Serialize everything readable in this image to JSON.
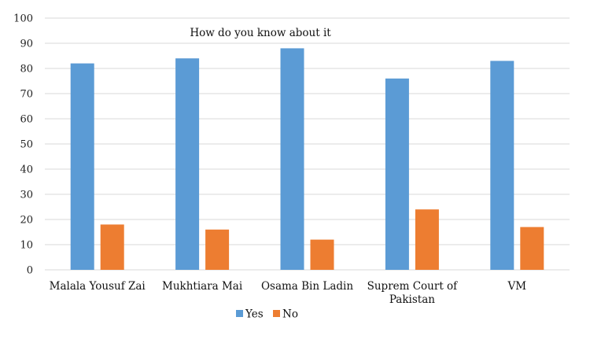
{
  "chart_data": {
    "type": "bar",
    "title": "How do you know about it",
    "categories": [
      [
        "Malala Yousuf Zai"
      ],
      [
        "Mukhtiara Mai"
      ],
      [
        "Osama Bin Ladin"
      ],
      [
        "Suprem Court of",
        "Pakistan"
      ],
      [
        "VM"
      ]
    ],
    "series": [
      {
        "name": "Yes",
        "color": "#5B9BD5",
        "values": [
          82,
          84,
          88,
          76,
          83
        ]
      },
      {
        "name": "No",
        "color": "#ED7D31",
        "values": [
          18,
          16,
          12,
          24,
          17
        ]
      }
    ],
    "ylim": [
      0,
      100
    ],
    "yticks": [
      0,
      10,
      20,
      30,
      40,
      50,
      60,
      70,
      80,
      90,
      100
    ],
    "grid": true,
    "legend_position": "bottom"
  }
}
